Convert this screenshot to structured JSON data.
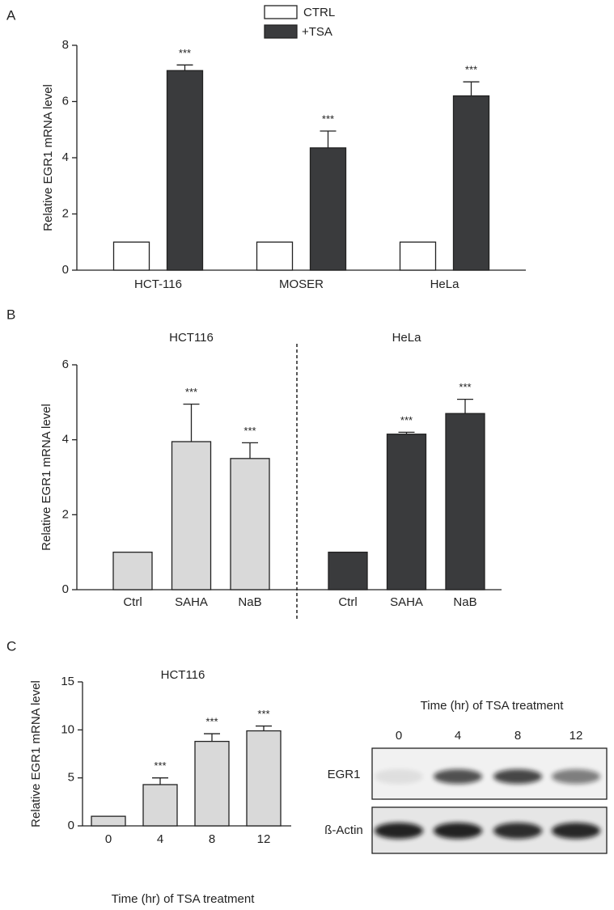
{
  "chart_data": [
    {
      "panel": "A",
      "type": "bar",
      "ylabel": "Relative EGR1 mRNA level",
      "categories": [
        "HCT-116",
        "MOSER",
        "HeLa"
      ],
      "series": [
        {
          "name": "CTRL",
          "color": "#ffffff",
          "values": [
            1,
            1,
            1
          ]
        },
        {
          "name": "+TSA",
          "color": "#3a3b3d",
          "values": [
            7.1,
            4.35,
            6.2
          ],
          "errors": [
            0.2,
            0.6,
            0.5
          ],
          "annotations": [
            "***",
            "***",
            "***"
          ]
        }
      ],
      "ylim": [
        0,
        8
      ],
      "yticks": [
        0,
        2,
        4,
        6,
        8
      ]
    },
    {
      "panel": "B",
      "type": "bar",
      "ylabel": "Relative EGR1 mRNA level",
      "groups": [
        {
          "title": "HCT116",
          "color": "#d9d9d9",
          "categories": [
            "Ctrl",
            "SAHA",
            "NaB"
          ],
          "values": [
            1,
            3.95,
            3.5
          ],
          "errors": [
            null,
            1.0,
            0.42
          ],
          "annotations": [
            null,
            "***",
            "***"
          ]
        },
        {
          "title": "HeLa",
          "color": "#3a3b3d",
          "categories": [
            "Ctrl",
            "SAHA",
            "NaB"
          ],
          "values": [
            1,
            4.15,
            4.7
          ],
          "errors": [
            null,
            0.05,
            0.38
          ],
          "annotations": [
            null,
            "***",
            "***"
          ]
        }
      ],
      "ylim": [
        0,
        6
      ],
      "yticks": [
        0,
        2,
        4,
        6
      ]
    },
    {
      "panel": "C",
      "type": "bar",
      "title": "HCT116",
      "ylabel": "Relative EGR1 mRNA level",
      "xlabel": "Time (hr) of TSA treatment",
      "categories": [
        "0",
        "4",
        "8",
        "12"
      ],
      "values": [
        1,
        4.3,
        8.8,
        9.9
      ],
      "errors": [
        null,
        0.7,
        0.8,
        0.5
      ],
      "annotations": [
        null,
        "***",
        "***",
        "***"
      ],
      "color": "#d9d9d9",
      "ylim": [
        0,
        15
      ],
      "yticks": [
        0,
        5,
        10,
        15
      ]
    }
  ],
  "blot": {
    "title": "Time (hr) of TSA treatment",
    "lanes": [
      "0",
      "4",
      "8",
      "12"
    ],
    "rows": [
      "EGR1",
      "ß-Actin"
    ]
  }
}
